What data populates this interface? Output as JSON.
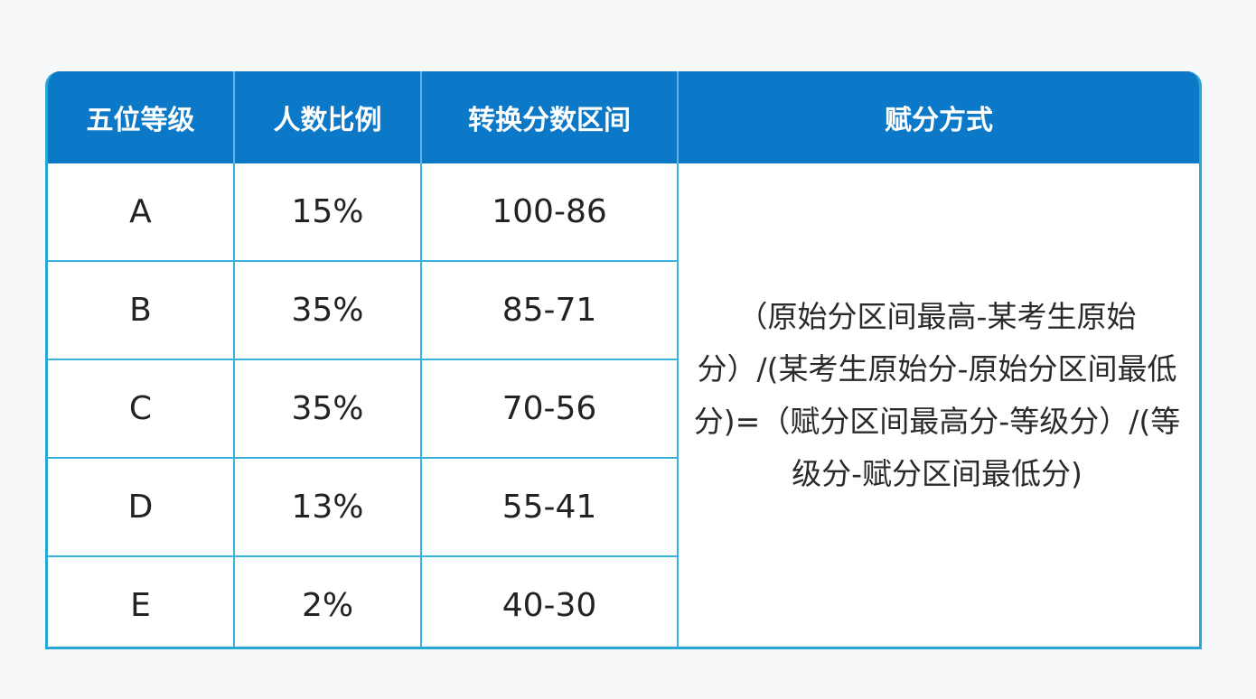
{
  "table": {
    "headers": [
      "五位等级",
      "人数比例",
      "转换分数区间",
      "赋分方式"
    ],
    "rows": [
      {
        "grade": "A",
        "ratio": "15%",
        "range": "100-86"
      },
      {
        "grade": "B",
        "ratio": "35%",
        "range": "85-71"
      },
      {
        "grade": "C",
        "ratio": "35%",
        "range": "70-56"
      },
      {
        "grade": "D",
        "ratio": "13%",
        "range": "55-41"
      },
      {
        "grade": "E",
        "ratio": "2%",
        "range": "40-30"
      }
    ],
    "formula": "（原始分区间最高-某考生原始分）/(某考生原始分-原始分区间最低分)=（赋分区间最高分-等级分）/(等级分-赋分区间最低分)"
  },
  "colors": {
    "header_bg": "#0b78c8",
    "border": "#27a6d8",
    "text": "#222222"
  }
}
